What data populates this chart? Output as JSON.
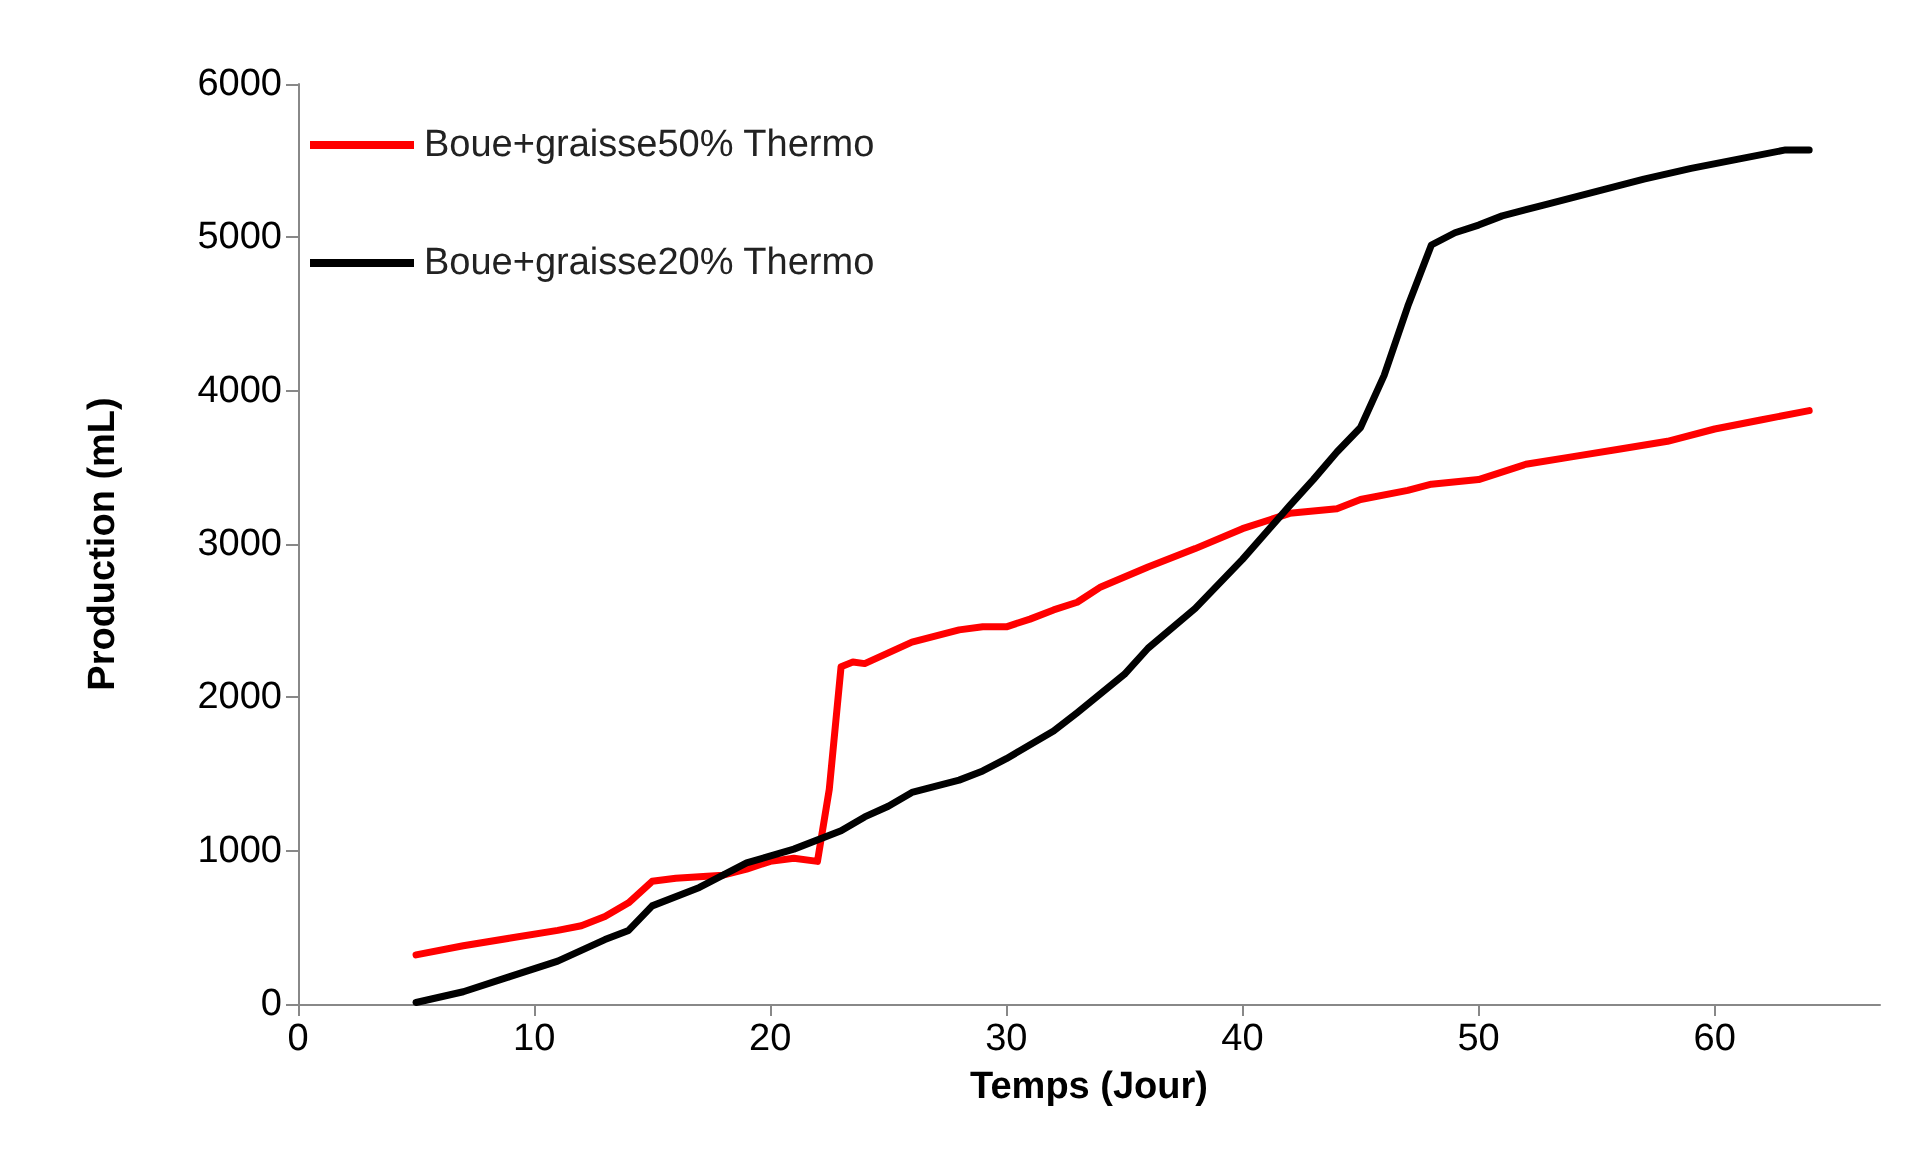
{
  "chart_data": {
    "type": "line",
    "xlabel": "Temps (Jour)",
    "ylabel": "Production (mL)",
    "xlim": [
      0,
      67
    ],
    "xticks": [
      0,
      10,
      20,
      30,
      40,
      50,
      60
    ],
    "ylim": [
      0,
      6000
    ],
    "yticks": [
      0,
      1000,
      2000,
      3000,
      4000,
      5000,
      6000
    ],
    "grid": false,
    "legend": "top left",
    "marker": "none",
    "line_style": "solid",
    "series": [
      {
        "name": "Boue+graisse50% Thermo",
        "color": "#ff0000",
        "x": [
          5,
          7,
          9,
          11,
          12,
          13,
          14,
          15,
          16,
          18,
          19,
          20,
          21,
          22,
          22.5,
          23,
          23.5,
          24,
          25,
          26,
          28,
          29,
          30,
          31,
          32,
          33,
          34,
          36,
          38,
          40,
          42,
          44,
          45,
          47,
          48,
          50,
          52,
          54,
          56,
          58,
          60,
          62,
          64
        ],
        "values": [
          320,
          380,
          430,
          480,
          510,
          570,
          660,
          800,
          820,
          840,
          880,
          930,
          950,
          930,
          1400,
          2200,
          2230,
          2220,
          2290,
          2360,
          2440,
          2460,
          2460,
          2510,
          2570,
          2620,
          2720,
          2850,
          2970,
          3100,
          3200,
          3230,
          3290,
          3350,
          3390,
          3420,
          3520,
          3570,
          3620,
          3670,
          3750,
          3810,
          3870
        ]
      },
      {
        "name": "Boue+graisse20% Thermo",
        "color": "#000000",
        "x": [
          5,
          7,
          9,
          11,
          13,
          14,
          15,
          17,
          19,
          21,
          23,
          24,
          25,
          26,
          28,
          29,
          30,
          32,
          33,
          35,
          36,
          38,
          40,
          42,
          43,
          44,
          45,
          46,
          47,
          48,
          49,
          50,
          51,
          53,
          55,
          57,
          59,
          61,
          63,
          64
        ],
        "values": [
          10,
          80,
          180,
          280,
          420,
          480,
          640,
          760,
          920,
          1010,
          1130,
          1220,
          1290,
          1380,
          1460,
          1520,
          1600,
          1780,
          1900,
          2150,
          2320,
          2580,
          2900,
          3250,
          3420,
          3600,
          3760,
          4100,
          4550,
          4950,
          5030,
          5080,
          5140,
          5220,
          5300,
          5380,
          5450,
          5510,
          5570,
          5570
        ]
      }
    ]
  }
}
